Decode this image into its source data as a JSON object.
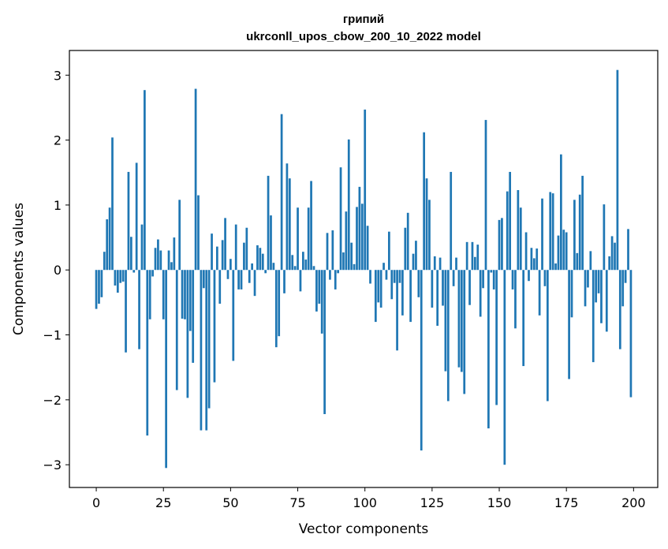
{
  "chart_data": {
    "type": "bar",
    "title": "грипий",
    "subtitle": "ukrconll_upos_cbow_200_10_2022 model",
    "xlabel": "Vector components",
    "ylabel": "Components values",
    "xlim": [
      -10,
      209
    ],
    "ylim": [
      -3.35,
      3.38
    ],
    "xticks": [
      0,
      25,
      50,
      75,
      100,
      125,
      150,
      175,
      200
    ],
    "xtick_labels": [
      "0",
      "25",
      "50",
      "75",
      "100",
      "125",
      "150",
      "175",
      "200"
    ],
    "yticks": [
      -3,
      -2,
      -1,
      0,
      1,
      2,
      3
    ],
    "ytick_labels": [
      "−3",
      "−2",
      "−1",
      "0",
      "1",
      "2",
      "3"
    ],
    "grid": false,
    "legend": "none",
    "color": "#1f77b4",
    "x": [
      0,
      1,
      2,
      3,
      4,
      5,
      6,
      7,
      8,
      9,
      10,
      11,
      12,
      13,
      14,
      15,
      16,
      17,
      18,
      19,
      20,
      21,
      22,
      23,
      24,
      25,
      26,
      27,
      28,
      29,
      30,
      31,
      32,
      33,
      34,
      35,
      36,
      37,
      38,
      39,
      40,
      41,
      42,
      43,
      44,
      45,
      46,
      47,
      48,
      49,
      50,
      51,
      52,
      53,
      54,
      55,
      56,
      57,
      58,
      59,
      60,
      61,
      62,
      63,
      64,
      65,
      66,
      67,
      68,
      69,
      70,
      71,
      72,
      73,
      74,
      75,
      76,
      77,
      78,
      79,
      80,
      81,
      82,
      83,
      84,
      85,
      86,
      87,
      88,
      89,
      90,
      91,
      92,
      93,
      94,
      95,
      96,
      97,
      98,
      99,
      100,
      101,
      102,
      103,
      104,
      105,
      106,
      107,
      108,
      109,
      110,
      111,
      112,
      113,
      114,
      115,
      116,
      117,
      118,
      119,
      120,
      121,
      122,
      123,
      124,
      125,
      126,
      127,
      128,
      129,
      130,
      131,
      132,
      133,
      134,
      135,
      136,
      137,
      138,
      139,
      140,
      141,
      142,
      143,
      144,
      145,
      146,
      147,
      148,
      149,
      150,
      151,
      152,
      153,
      154,
      155,
      156,
      157,
      158,
      159,
      160,
      161,
      162,
      163,
      164,
      165,
      166,
      167,
      168,
      169,
      170,
      171,
      172,
      173,
      174,
      175,
      176,
      177,
      178,
      179,
      180,
      181,
      182,
      183,
      184,
      185,
      186,
      187,
      188,
      189,
      190,
      191,
      192,
      193,
      194,
      195,
      196,
      197,
      198,
      199
    ],
    "values": [
      -0.6,
      -0.52,
      -0.42,
      0.28,
      0.78,
      0.96,
      2.04,
      -0.24,
      -0.35,
      -0.2,
      -0.18,
      -1.27,
      1.51,
      0.51,
      -0.04,
      1.65,
      -1.22,
      0.7,
      2.77,
      -2.55,
      -0.76,
      -0.1,
      0.34,
      0.47,
      0.3,
      -0.76,
      -3.05,
      0.3,
      0.12,
      0.5,
      -1.85,
      1.08,
      -0.75,
      -0.76,
      -1.97,
      -0.94,
      -1.43,
      2.79,
      1.15,
      -2.47,
      -0.28,
      -2.47,
      -2.13,
      0.56,
      -1.73,
      0.36,
      -0.52,
      0.46,
      0.8,
      -0.14,
      0.17,
      -1.4,
      0.7,
      -0.3,
      -0.3,
      0.42,
      0.65,
      -0.2,
      0.1,
      -0.4,
      0.38,
      0.34,
      0.25,
      -0.05,
      1.45,
      0.84,
      0.11,
      -1.19,
      -1.02,
      2.4,
      -0.36,
      1.64,
      1.41,
      0.23,
      0.06,
      0.96,
      -0.33,
      0.28,
      0.16,
      0.96,
      1.37,
      0.06,
      -0.64,
      -0.52,
      -0.98,
      -2.22,
      0.57,
      -0.15,
      0.61,
      -0.3,
      -0.05,
      1.58,
      0.27,
      0.9,
      2.01,
      0.42,
      0.09,
      0.97,
      1.28,
      1.02,
      2.47,
      0.68,
      -0.21,
      0.0,
      -0.8,
      -0.5,
      -0.58,
      0.11,
      -0.15,
      0.59,
      -0.45,
      -0.2,
      -1.24,
      -0.2,
      -0.7,
      0.65,
      0.88,
      -0.8,
      0.25,
      0.45,
      -0.42,
      -2.78,
      2.12,
      1.41,
      1.08,
      -0.58,
      0.21,
      -0.86,
      0.19,
      -0.55,
      -1.56,
      -2.02,
      1.51,
      -0.25,
      0.19,
      -1.5,
      -1.57,
      -1.91,
      0.43,
      -0.54,
      0.43,
      0.2,
      0.39,
      -0.72,
      -0.28,
      2.31,
      -2.44,
      -0.04,
      -0.3,
      -2.08,
      0.77,
      0.8,
      -3.0,
      1.21,
      1.51,
      -0.3,
      -0.9,
      1.23,
      0.96,
      -1.48,
      0.58,
      -0.17,
      0.34,
      0.18,
      0.33,
      -0.7,
      1.1,
      -0.25,
      -2.02,
      1.2,
      1.18,
      0.1,
      0.53,
      1.78,
      0.62,
      0.58,
      -1.68,
      -0.73,
      1.08,
      0.26,
      1.16,
      1.45,
      -0.56,
      -0.27,
      0.29,
      -1.42,
      -0.5,
      -0.36,
      -0.82,
      1.01,
      -0.95,
      0.21,
      0.52,
      0.42,
      3.08,
      -1.22,
      -0.56,
      -0.2,
      0.63,
      -1.96
    ]
  }
}
